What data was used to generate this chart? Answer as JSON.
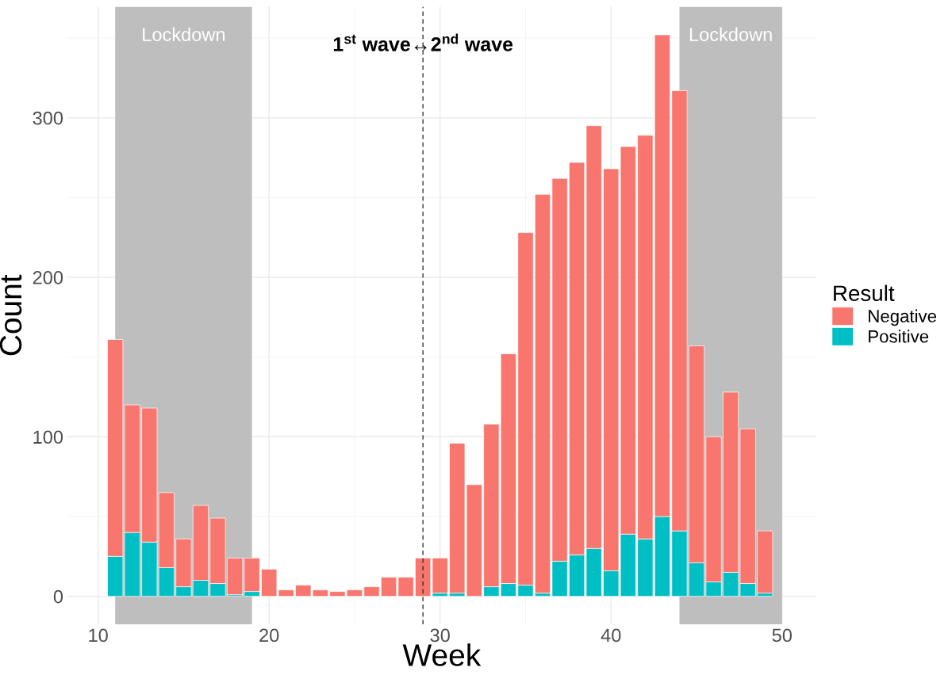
{
  "chart_data": {
    "type": "bar",
    "stacked": true,
    "xlabel": "Week",
    "ylabel": "Count",
    "legend_title": "Result",
    "legend": "right",
    "grid": true,
    "x": [
      11,
      12,
      13,
      14,
      15,
      16,
      17,
      18,
      19,
      20,
      21,
      22,
      23,
      24,
      25,
      26,
      27,
      28,
      29,
      30,
      31,
      32,
      33,
      34,
      35,
      36,
      37,
      38,
      39,
      40,
      41,
      42,
      43,
      44,
      45,
      46,
      47,
      48,
      49
    ],
    "series": [
      {
        "name": "Positive",
        "color": "#00bfc4",
        "values": [
          25,
          40,
          34,
          18,
          6,
          10,
          8,
          1,
          3,
          0,
          0,
          0,
          0,
          0,
          0,
          0,
          0,
          0,
          0,
          2,
          2,
          0,
          6,
          8,
          7,
          2,
          22,
          26,
          30,
          16,
          39,
          36,
          50,
          41,
          21,
          9,
          15,
          8,
          2
        ]
      },
      {
        "name": "Negative",
        "color": "#f8766d",
        "values": [
          136,
          80,
          84,
          47,
          30,
          47,
          41,
          23,
          21,
          17,
          4,
          7,
          4,
          3,
          4,
          6,
          12,
          12,
          24,
          22,
          94,
          70,
          102,
          144,
          221,
          250,
          240,
          246,
          265,
          252,
          243,
          253,
          302,
          276,
          136,
          91,
          113,
          97,
          39
        ]
      }
    ],
    "xlim": [
      8.2,
      52
    ],
    "xticks": [
      10,
      20,
      30,
      40,
      50
    ],
    "ylim": [
      -17.6,
      369.6
    ],
    "yticks": [
      0,
      100,
      200,
      300
    ],
    "bands": [
      {
        "axis": "x",
        "from": 11,
        "to": 19,
        "label": "Lockdown",
        "color": "#bebebe"
      },
      {
        "axis": "x",
        "from": 44,
        "to": 50,
        "label": "Lockdown",
        "color": "#bebebe"
      }
    ],
    "ref_lines": [
      {
        "axis": "x",
        "value": 29,
        "line_style": "dashed",
        "color": "#333333"
      }
    ],
    "annotations": [
      {
        "text": "1$^{st}$ wave↔2$^{nd}$ wave",
        "x": 29,
        "y": 345
      }
    ]
  }
}
